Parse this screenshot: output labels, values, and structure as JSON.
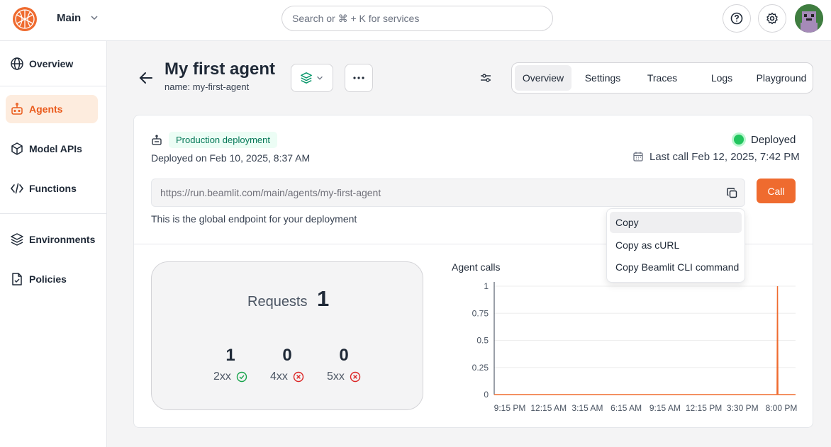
{
  "header": {
    "workspace": "Main",
    "search_placeholder": "Search or ⌘ + K for services"
  },
  "sidebar": {
    "items": [
      {
        "label": "Overview"
      },
      {
        "label": "Agents"
      },
      {
        "label": "Model APIs"
      },
      {
        "label": "Functions"
      },
      {
        "label": "Environments"
      },
      {
        "label": "Policies"
      }
    ]
  },
  "page": {
    "title": "My first agent",
    "name_prefix": "name:",
    "name_value": "my-first-agent",
    "tabs": [
      "Overview",
      "Settings",
      "Traces",
      "Logs",
      "Playground"
    ]
  },
  "deployment": {
    "badge": "Production deployment",
    "deployed_on": "Deployed on Feb 10, 2025, 8:37 AM",
    "status": "Deployed",
    "last_call": "Last call Feb 12, 2025, 7:42 PM",
    "endpoint": "https://run.beamlit.com/main/agents/my-first-agent",
    "call_label": "Call",
    "endpoint_note": "This is the global endpoint for your deployment"
  },
  "copy_menu": {
    "items": [
      "Copy",
      "Copy as cURL",
      "Copy Beamlit CLI command"
    ]
  },
  "requests": {
    "label": "Requests",
    "total": "1",
    "stats": [
      {
        "value": "1",
        "label": "2xx"
      },
      {
        "value": "0",
        "label": "4xx"
      },
      {
        "value": "0",
        "label": "5xx"
      }
    ]
  },
  "colors": {
    "accent": "#ef6b2f",
    "success": "#22c55e",
    "error": "#dc2626"
  },
  "chart_data": {
    "type": "line",
    "title": "Agent calls",
    "x_ticks": [
      "9:15 PM",
      "12:15 AM",
      "3:15 AM",
      "6:15 AM",
      "9:15 AM",
      "12:15 PM",
      "3:30 PM",
      "8:00 PM"
    ],
    "y_ticks": [
      "0",
      "0.25",
      "0.5",
      "0.75",
      "1"
    ],
    "ylim": [
      0,
      1
    ],
    "series": [
      {
        "color": "#ef6b2f",
        "x": [
          "9:15 PM",
          "7:40 PM",
          "7:42 PM",
          "7:44 PM",
          "8:00 PM"
        ],
        "values": [
          0,
          0,
          1,
          0,
          0
        ]
      }
    ]
  }
}
